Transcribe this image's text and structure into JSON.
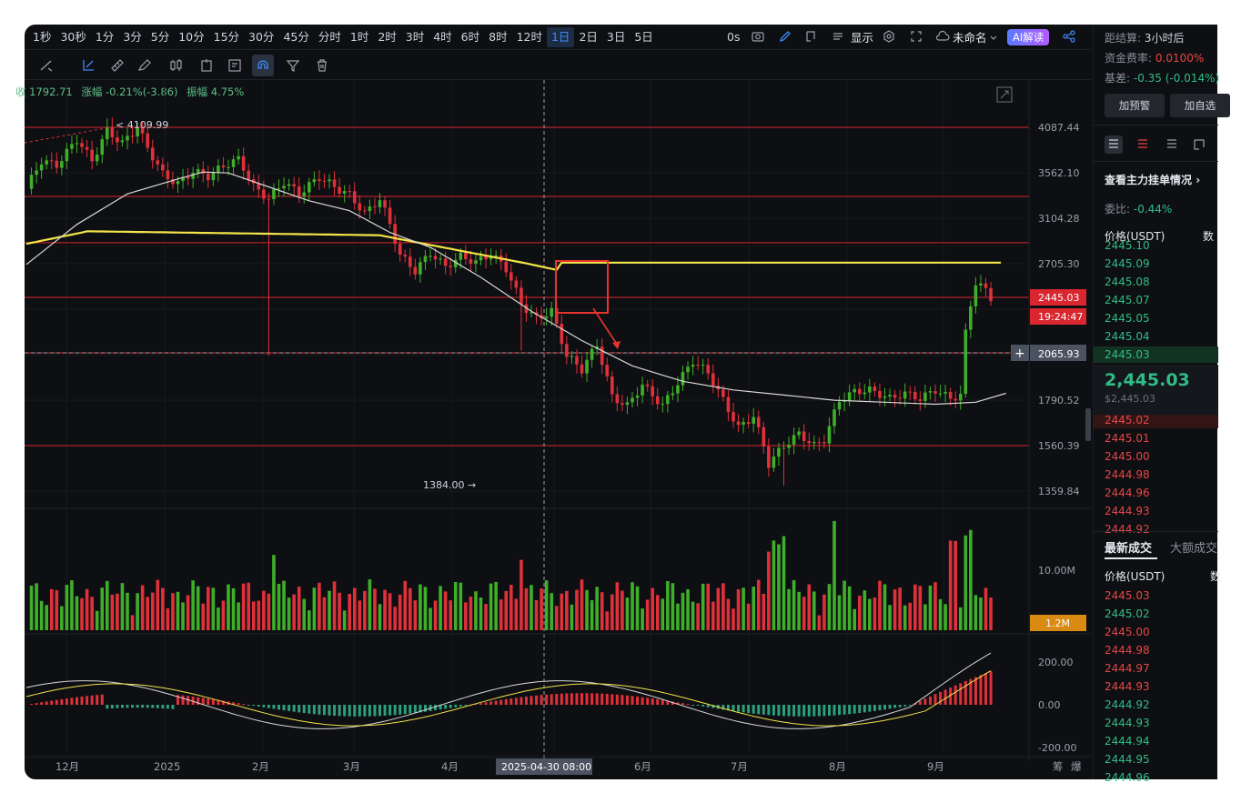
{
  "timeframes": [
    "1秒",
    "30秒",
    "1分",
    "3分",
    "5分",
    "10分",
    "15分",
    "30分",
    "45分",
    "分时",
    "1时",
    "2时",
    "3时",
    "4时",
    "6时",
    "8时",
    "12时",
    "1日",
    "2日",
    "3日",
    "5日"
  ],
  "active_timeframe": "1日",
  "topbar": {
    "zero_seconds": "0s",
    "display_label": "显示",
    "unnamed_label": "未命名",
    "ai_label": "AI解读"
  },
  "infoline": {
    "close_partial": "收 1792.71",
    "change": "涨幅 -0.21%(-3.86)",
    "amplitude": "振幅 4.75%"
  },
  "price_axis": {
    "ticks": [
      "4087.44",
      "3562.10",
      "3104.28",
      "2705.30",
      "1790.52",
      "1560.39",
      "1359.84"
    ]
  },
  "current_price_tag": "2445.03",
  "countdown_tag": "19:24:47",
  "crosshair_tag": "2065.93",
  "high_label": "4109.99",
  "low_label": "1384.00",
  "volume": {
    "scale_label": "10.00M",
    "current_label": "1.2M"
  },
  "macd_axis": [
    "200.00",
    "0.00",
    "-200.00"
  ],
  "time_axis": {
    "labels": [
      "12月",
      "2025",
      "2月",
      "3月",
      "4月",
      "6月",
      "7月",
      "8月",
      "9月"
    ],
    "crosshair_date": "2025-04-30 08:00"
  },
  "bottom_right": {
    "a": "筹",
    "b": "爆"
  },
  "chart_data": {
    "type": "candlestick",
    "price_range": [
      1300,
      4200
    ],
    "horizontal_levels": [
      4087.44,
      3324,
      2890,
      2445.03,
      2065.93,
      1560.39
    ],
    "ma200_color": "#f2e44a",
    "ma_white_color": "#d8d8d8",
    "up_color": "#3fae2a",
    "down_color": "#e0303a",
    "series_anchors": [
      [
        0,
        3400
      ],
      [
        3,
        3700
      ],
      [
        6,
        3650
      ],
      [
        10,
        3950
      ],
      [
        13,
        3700
      ],
      [
        16,
        4050
      ],
      [
        19,
        3900
      ],
      [
        22,
        4090
      ],
      [
        24,
        3850
      ],
      [
        27,
        3550
      ],
      [
        30,
        3450
      ],
      [
        33,
        3580
      ],
      [
        36,
        3530
      ],
      [
        39,
        3640
      ],
      [
        42,
        3720
      ],
      [
        45,
        3420
      ],
      [
        48,
        3300
      ],
      [
        51,
        3470
      ],
      [
        54,
        3350
      ],
      [
        58,
        3520
      ],
      [
        61,
        3420
      ],
      [
        64,
        3340
      ],
      [
        67,
        3150
      ],
      [
        70,
        3300
      ],
      [
        72,
        3050
      ],
      [
        74,
        2780
      ],
      [
        77,
        2650
      ],
      [
        80,
        2800
      ],
      [
        83,
        2680
      ],
      [
        86,
        2770
      ],
      [
        89,
        2720
      ],
      [
        92,
        2790
      ],
      [
        95,
        2670
      ],
      [
        98,
        2400
      ],
      [
        101,
        2300
      ],
      [
        104,
        2350
      ],
      [
        107,
        2050
      ],
      [
        110,
        1970
      ],
      [
        113,
        2120
      ],
      [
        116,
        1810
      ],
      [
        119,
        1760
      ],
      [
        122,
        1880
      ],
      [
        126,
        1760
      ],
      [
        129,
        1890
      ],
      [
        132,
        2020
      ],
      [
        135,
        1950
      ],
      [
        138,
        1790
      ],
      [
        141,
        1650
      ],
      [
        144,
        1710
      ],
      [
        147,
        1480
      ],
      [
        150,
        1560
      ],
      [
        153,
        1620
      ],
      [
        156,
        1560
      ],
      [
        158,
        1590
      ],
      [
        161,
        1790
      ],
      [
        164,
        1840
      ],
      [
        167,
        1850
      ],
      [
        171,
        1800
      ],
      [
        174,
        1830
      ],
      [
        177,
        1800
      ],
      [
        180,
        1850
      ],
      [
        183,
        1800
      ],
      [
        185,
        1820
      ],
      [
        186,
        2200
      ],
      [
        187,
        2400
      ],
      [
        188,
        2560
      ],
      [
        190,
        2500
      ],
      [
        191,
        2445
      ]
    ],
    "volume_max": 14000000,
    "macd_range": [
      -300,
      300
    ]
  },
  "rightpanel": {
    "settle_label": "距结算:",
    "settle_value": "3小时后",
    "funding_label": "资金费率:",
    "funding_value": "0.0100%",
    "basis_label": "基差:",
    "basis_value": "-0.35 (-0.014%)",
    "btn_alert": "加预警",
    "btn_watch": "加自选",
    "orderbook_link": "查看主力挂单情况",
    "ratio_label": "委比:",
    "ratio_value": "-0.44%",
    "price_header": "价格(USDT)",
    "qty_header": "数",
    "asks": [
      "2445.10",
      "2445.09",
      "2445.08",
      "2445.07",
      "2445.05",
      "2445.04",
      "2445.03"
    ],
    "last_price": "2,445.03",
    "last_price_usd": "$2,445.03",
    "bids": [
      "2445.02",
      "2445.01",
      "2445.00",
      "2444.98",
      "2444.96",
      "2444.93",
      "2444.92"
    ],
    "tab_latest": "最新成交",
    "tab_large": "大额成交",
    "trades_header": "价格(USDT)",
    "trades_qty_header": "数",
    "trades": [
      {
        "p": "2445.03",
        "c": "red"
      },
      {
        "p": "2445.02",
        "c": "green"
      },
      {
        "p": "2445.00",
        "c": "red"
      },
      {
        "p": "2444.98",
        "c": "red"
      },
      {
        "p": "2444.97",
        "c": "red"
      },
      {
        "p": "2444.93",
        "c": "red"
      },
      {
        "p": "2444.92",
        "c": "green"
      },
      {
        "p": "2444.93",
        "c": "green"
      },
      {
        "p": "2444.94",
        "c": "green"
      },
      {
        "p": "2444.95",
        "c": "green"
      },
      {
        "p": "2444.96",
        "c": "green"
      }
    ]
  }
}
